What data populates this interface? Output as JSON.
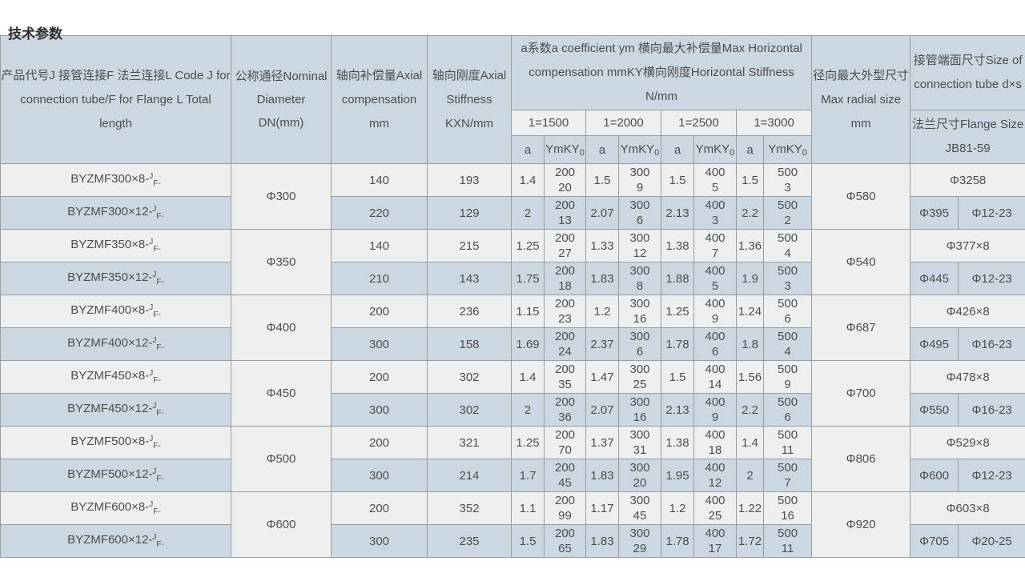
{
  "page_title": "技术参数",
  "table": {
    "headers": {
      "product_code_lines": [
        "产品代号J 接管连接F 法兰连接L Code J for",
        "connection tube/F for Flange L Total",
        "length"
      ],
      "nominal_diameter_lines": [
        "公称通径Nominal",
        "Diameter",
        "DN(mm)"
      ],
      "axial_compensation_lines": [
        "轴向补偿量Axial",
        "compensation",
        "mm"
      ],
      "axial_stiffness_lines": [
        "轴向刚度Axial",
        "Stiffness",
        "KXN/mm"
      ],
      "horizontal_group_lines": [
        "a系数a coefficient ym 横向最大补偿量Max Horizontal",
        "compensation mmKY横向刚度Horizontal Stiffness",
        "N/mm"
      ],
      "length_groups": [
        "1=1500",
        "1=2000",
        "1=2500",
        "1=3000"
      ],
      "a_label": "a",
      "ymky_label": "YmKY",
      "ymky_sub": "0",
      "max_radial_lines": [
        "径向最大外型尺寸",
        "Max radial size",
        "mm"
      ],
      "tube_size_lines": [
        "接管端面尺寸Size of",
        "connection tube d×s"
      ],
      "flange_size_lines": [
        "法兰尺寸Flange Size",
        "JB81-59"
      ]
    },
    "groups": [
      {
        "dn": "Φ300",
        "max_radial": "Φ580",
        "tube_size": "Φ3258",
        "flange": [
          "Φ395",
          "Φ12-23"
        ],
        "rows": [
          {
            "code": {
              "prefix": "BYZMF300×8-",
              "sup": "J",
              "sub": "F-"
            },
            "axial_compensation": "140",
            "axial_stiffness": "193",
            "pairs": [
              {
                "a": "1.4",
                "ym": [
                  "200",
                  "20"
                ]
              },
              {
                "a": "1.5",
                "ym": [
                  "300",
                  "9"
                ]
              },
              {
                "a": "1.5",
                "ym": [
                  "400",
                  "5"
                ]
              },
              {
                "a": "1.5",
                "ym": [
                  "500",
                  "3"
                ]
              }
            ]
          },
          {
            "code": {
              "prefix": "BYZMF300×12-",
              "sup": "J",
              "sub": "F-"
            },
            "axial_compensation": "220",
            "axial_stiffness": "129",
            "pairs": [
              {
                "a": "2",
                "ym": [
                  "200",
                  "13"
                ]
              },
              {
                "a": "2.07",
                "ym": [
                  "300",
                  "6"
                ]
              },
              {
                "a": "2.13",
                "ym": [
                  "400",
                  "3"
                ]
              },
              {
                "a": "2.2",
                "ym": [
                  "500",
                  "2"
                ]
              }
            ]
          }
        ]
      },
      {
        "dn": "Φ350",
        "max_radial": "Φ540",
        "tube_size": "Φ377×8",
        "flange": [
          "Φ445",
          "Φ12-23"
        ],
        "rows": [
          {
            "code": {
              "prefix": "BYZMF350×8-",
              "sup": "J",
              "sub": "F-"
            },
            "axial_compensation": "140",
            "axial_stiffness": "215",
            "pairs": [
              {
                "a": "1.25",
                "ym": [
                  "200",
                  "27"
                ]
              },
              {
                "a": "1.33",
                "ym": [
                  "300",
                  "12"
                ]
              },
              {
                "a": "1.38",
                "ym": [
                  "400",
                  "7"
                ]
              },
              {
                "a": "1.36",
                "ym": [
                  "500",
                  "4"
                ]
              }
            ]
          },
          {
            "code": {
              "prefix": "BYZMF350×12-",
              "sup": "J",
              "sub": "F-"
            },
            "axial_compensation": "210",
            "axial_stiffness": "143",
            "pairs": [
              {
                "a": "1.75",
                "ym": [
                  "200",
                  "18"
                ]
              },
              {
                "a": "1.83",
                "ym": [
                  "300",
                  "8"
                ]
              },
              {
                "a": "1.88",
                "ym": [
                  "400",
                  "5"
                ]
              },
              {
                "a": "1.9",
                "ym": [
                  "500",
                  "3"
                ]
              }
            ]
          }
        ]
      },
      {
        "dn": "Φ400",
        "max_radial": "Φ687",
        "tube_size": "Φ426×8",
        "flange": [
          "Φ495",
          "Φ16-23"
        ],
        "rows": [
          {
            "code": {
              "prefix": "BYZMF400×8-",
              "sup": "J",
              "sub": "F-"
            },
            "axial_compensation": "200",
            "axial_stiffness": "236",
            "pairs": [
              {
                "a": "1.15",
                "ym": [
                  "200",
                  "23"
                ]
              },
              {
                "a": "1.2",
                "ym": [
                  "300",
                  "16"
                ]
              },
              {
                "a": "1.25",
                "ym": [
                  "400",
                  "9"
                ]
              },
              {
                "a": "1.24",
                "ym": [
                  "500",
                  "6"
                ]
              }
            ]
          },
          {
            "code": {
              "prefix": "BYZMF400×12-",
              "sup": "J",
              "sub": "F-"
            },
            "axial_compensation": "300",
            "axial_stiffness": "158",
            "pairs": [
              {
                "a": "1.69",
                "ym": [
                  "200",
                  "24"
                ]
              },
              {
                "a": "2.37",
                "ym": [
                  "300",
                  "6"
                ]
              },
              {
                "a": "1.78",
                "ym": [
                  "400",
                  "6"
                ]
              },
              {
                "a": "1.8",
                "ym": [
                  "500",
                  "4"
                ]
              }
            ]
          }
        ]
      },
      {
        "dn": "Φ450",
        "max_radial": "Φ700",
        "tube_size": "Φ478×8",
        "flange": [
          "Φ550",
          "Φ16-23"
        ],
        "rows": [
          {
            "code": {
              "prefix": "BYZMF450×8-",
              "sup": "J",
              "sub": "F-"
            },
            "axial_compensation": "200",
            "axial_stiffness": "302",
            "pairs": [
              {
                "a": "1.4",
                "ym": [
                  "200",
                  "35"
                ]
              },
              {
                "a": "1.47",
                "ym": [
                  "300",
                  "25"
                ]
              },
              {
                "a": "1.5",
                "ym": [
                  "400",
                  "14"
                ]
              },
              {
                "a": "1.56",
                "ym": [
                  "500",
                  "9"
                ]
              }
            ]
          },
          {
            "code": {
              "prefix": "BYZMF450×12-",
              "sup": "J",
              "sub": "F-"
            },
            "axial_compensation": "300",
            "axial_stiffness": "302",
            "pairs": [
              {
                "a": "2",
                "ym": [
                  "200",
                  "36"
                ]
              },
              {
                "a": "2.07",
                "ym": [
                  "300",
                  "16"
                ]
              },
              {
                "a": "2.13",
                "ym": [
                  "400",
                  "9"
                ]
              },
              {
                "a": "2.2",
                "ym": [
                  "500",
                  "6"
                ]
              }
            ]
          }
        ]
      },
      {
        "dn": "Φ500",
        "max_radial": "Φ806",
        "tube_size": "Φ529×8",
        "flange": [
          "Φ600",
          "Φ12-23"
        ],
        "rows": [
          {
            "code": {
              "prefix": "BYZMF500×8-",
              "sup": "J",
              "sub": "F-"
            },
            "axial_compensation": "200",
            "axial_stiffness": "321",
            "pairs": [
              {
                "a": "1.25",
                "ym": [
                  "200",
                  "70"
                ]
              },
              {
                "a": "1.37",
                "ym": [
                  "300",
                  "31"
                ]
              },
              {
                "a": "1.38",
                "ym": [
                  "400",
                  "18"
                ]
              },
              {
                "a": "1.4",
                "ym": [
                  "500",
                  "11"
                ]
              }
            ]
          },
          {
            "code": {
              "prefix": "BYZMF500×12-",
              "sup": "J",
              "sub": "F-"
            },
            "axial_compensation": "300",
            "axial_stiffness": "214",
            "pairs": [
              {
                "a": "1.7",
                "ym": [
                  "200",
                  "45"
                ]
              },
              {
                "a": "1.83",
                "ym": [
                  "300",
                  "20"
                ]
              },
              {
                "a": "1.95",
                "ym": [
                  "400",
                  "12"
                ]
              },
              {
                "a": "2",
                "ym": [
                  "500",
                  "7"
                ]
              }
            ]
          }
        ]
      },
      {
        "dn": "Φ600",
        "max_radial": "Φ920",
        "tube_size": "Φ603×8",
        "flange": [
          "Φ705",
          "Φ20-25"
        ],
        "rows": [
          {
            "code": {
              "prefix": "BYZMF600×8-",
              "sup": "J",
              "sub": "F-"
            },
            "axial_compensation": "200",
            "axial_stiffness": "352",
            "pairs": [
              {
                "a": "1.1",
                "ym": [
                  "200",
                  "99"
                ]
              },
              {
                "a": "1.17",
                "ym": [
                  "300",
                  "45"
                ]
              },
              {
                "a": "1.2",
                "ym": [
                  "400",
                  "25"
                ]
              },
              {
                "a": "1.22",
                "ym": [
                  "500",
                  "16"
                ]
              }
            ]
          },
          {
            "code": {
              "prefix": "BYZMF600×12-",
              "sup": "J",
              "sub": "F-"
            },
            "axial_compensation": "300",
            "axial_stiffness": "235",
            "pairs": [
              {
                "a": "1.5",
                "ym": [
                  "200",
                  "65"
                ]
              },
              {
                "a": "1.83",
                "ym": [
                  "300",
                  "29"
                ]
              },
              {
                "a": "1.78",
                "ym": [
                  "400",
                  "17"
                ]
              },
              {
                "a": "1.72",
                "ym": [
                  "500",
                  "11"
                ]
              }
            ]
          }
        ]
      }
    ]
  }
}
